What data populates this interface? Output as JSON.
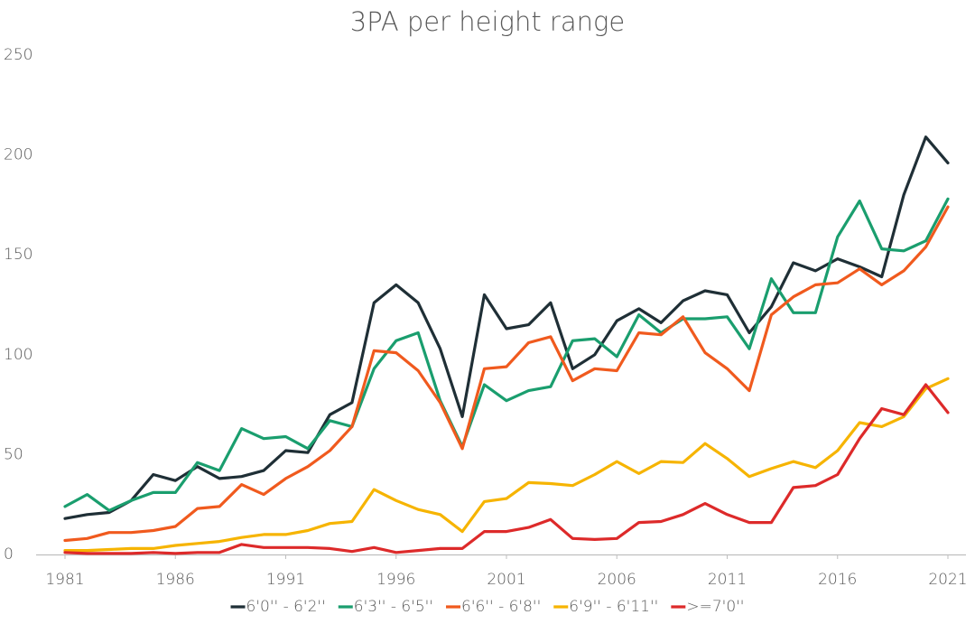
{
  "chart_data": {
    "type": "line",
    "title": "3PA per height range",
    "x": [
      1981,
      1982,
      1983,
      1984,
      1985,
      1986,
      1987,
      1988,
      1989,
      1990,
      1991,
      1992,
      1993,
      1994,
      1995,
      1996,
      1997,
      1998,
      1999,
      2000,
      2001,
      2002,
      2003,
      2004,
      2005,
      2006,
      2007,
      2008,
      2009,
      2010,
      2011,
      2012,
      2013,
      2014,
      2015,
      2016,
      2017,
      2018,
      2019,
      2020,
      2021
    ],
    "xlim": [
      1981,
      2021
    ],
    "xticks": [
      1981,
      1986,
      1991,
      1996,
      2001,
      2006,
      2011,
      2016,
      2021
    ],
    "ylim": [
      0,
      250
    ],
    "yticks": [
      0,
      50,
      100,
      150,
      200,
      250
    ],
    "grid": false,
    "legend": "bottom",
    "series": [
      {
        "name": "6'0'' - 6'2''",
        "color": "#1f2f36",
        "values": [
          18,
          20,
          21,
          27,
          40,
          37,
          44,
          38,
          39,
          42,
          52,
          51,
          70,
          76,
          126,
          135,
          126,
          103,
          69,
          130,
          113,
          115,
          126,
          93,
          100,
          117,
          123,
          116,
          127,
          132,
          130,
          111,
          124,
          146,
          142,
          148,
          144,
          139,
          180,
          209,
          196
        ]
      },
      {
        "name": "6'3'' - 6'5''",
        "color": "#1a9e6e",
        "values": [
          24,
          30,
          22,
          27,
          31,
          31,
          46,
          42,
          63,
          58,
          59,
          53,
          67,
          64,
          93,
          107,
          111,
          77,
          54,
          85,
          77,
          82,
          84,
          107,
          108,
          99,
          120,
          111,
          118,
          118,
          119,
          103,
          138,
          121,
          121,
          159,
          177,
          153,
          152,
          157,
          178
        ]
      },
      {
        "name": "6'6'' - 6'8''",
        "color": "#f05a1e",
        "values": [
          7,
          8,
          11,
          11,
          12,
          14,
          23,
          24,
          35,
          30,
          38,
          44,
          52,
          64,
          102,
          101,
          92,
          76,
          53,
          93,
          94,
          106,
          109,
          87,
          93,
          92,
          111,
          110,
          119,
          101,
          93,
          82,
          120,
          129,
          135,
          136,
          143,
          135,
          142,
          154,
          174
        ]
      },
      {
        "name": "6'9'' - 6'11''",
        "color": "#f6b400",
        "values": [
          2,
          2,
          2.5,
          3,
          3,
          4.5,
          5.5,
          6.5,
          8.5,
          10,
          10,
          12,
          15.5,
          16.5,
          32.5,
          27,
          22.5,
          20,
          11.5,
          26.5,
          28,
          36,
          35.5,
          34.5,
          40,
          46.5,
          40.5,
          46.5,
          46,
          55.5,
          48,
          39,
          43,
          46.5,
          43.5,
          52,
          66,
          64,
          69,
          83,
          88
        ]
      },
      {
        "name": ">=7'0''",
        "color": "#dd2a2a",
        "values": [
          1,
          0.5,
          0.5,
          0.5,
          1,
          0.5,
          1,
          1,
          5,
          3.5,
          3.5,
          3.5,
          3,
          1.5,
          3.5,
          1,
          2,
          3,
          3,
          11.5,
          11.5,
          13.5,
          17.5,
          8,
          7.5,
          8,
          16,
          16.5,
          20,
          25.5,
          20,
          16,
          16,
          33.5,
          34.5,
          40,
          58,
          73,
          70,
          85,
          71
        ]
      }
    ]
  }
}
